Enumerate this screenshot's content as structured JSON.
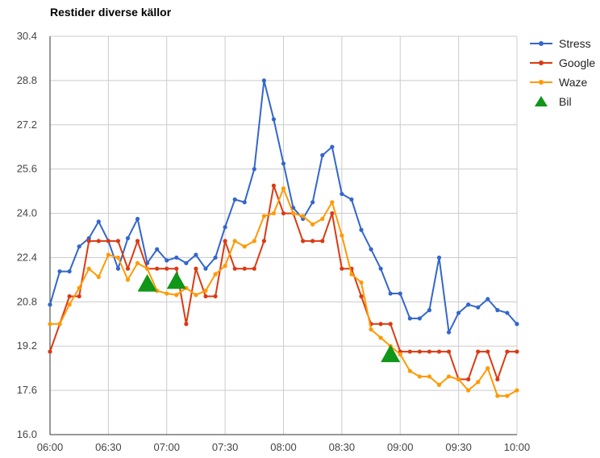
{
  "chart_data": {
    "type": "line",
    "title": "Restider diverse källor",
    "xlabel": "",
    "ylabel": "",
    "ylim": [
      16.0,
      30.4
    ],
    "y_ticks": [
      "16.0",
      "17.6",
      "19.2",
      "20.8",
      "22.4",
      "24.0",
      "25.6",
      "27.2",
      "28.8",
      "30.4"
    ],
    "x_range": [
      "06:00",
      "10:00"
    ],
    "x_ticks": [
      "06:00",
      "06:30",
      "07:00",
      "07:30",
      "08:00",
      "08:30",
      "09:00",
      "09:30",
      "10:00"
    ],
    "grid": true,
    "legend_position": "right",
    "series": [
      {
        "name": "Stress",
        "color": "#3366cc",
        "marker": "circle",
        "x": [
          "06:00",
          "06:05",
          "06:10",
          "06:15",
          "06:20",
          "06:25",
          "06:30",
          "06:35",
          "06:40",
          "06:45",
          "06:50",
          "06:55",
          "07:00",
          "07:05",
          "07:10",
          "07:15",
          "07:20",
          "07:25",
          "07:30",
          "07:35",
          "07:40",
          "07:45",
          "07:50",
          "07:55",
          "08:00",
          "08:05",
          "08:10",
          "08:15",
          "08:20",
          "08:25",
          "08:30",
          "08:35",
          "08:40",
          "08:45",
          "08:50",
          "08:55",
          "09:00",
          "09:05",
          "09:10",
          "09:15",
          "09:20",
          "09:25",
          "09:30",
          "09:35",
          "09:40",
          "09:45",
          "09:50",
          "09:55",
          "10:00"
        ],
        "values": [
          20.7,
          21.9,
          21.9,
          22.8,
          23.1,
          23.7,
          23.0,
          22.0,
          23.1,
          23.8,
          22.2,
          22.7,
          22.3,
          22.4,
          22.2,
          22.5,
          22.0,
          22.4,
          23.5,
          24.5,
          24.4,
          25.6,
          28.8,
          27.4,
          25.8,
          24.2,
          23.8,
          24.4,
          26.1,
          26.4,
          24.7,
          24.5,
          23.4,
          22.7,
          22.0,
          21.1,
          21.1,
          20.2,
          20.2,
          20.5,
          22.4,
          19.7,
          20.4,
          20.7,
          20.6,
          20.9,
          20.5,
          20.4,
          20.0
        ]
      },
      {
        "name": "Google",
        "color": "#dc3912",
        "marker": "circle",
        "x": [
          "06:00",
          "06:05",
          "06:10",
          "06:15",
          "06:20",
          "06:25",
          "06:30",
          "06:35",
          "06:40",
          "06:45",
          "06:50",
          "06:55",
          "07:00",
          "07:05",
          "07:10",
          "07:15",
          "07:20",
          "07:25",
          "07:30",
          "07:35",
          "07:40",
          "07:45",
          "07:50",
          "07:55",
          "08:00",
          "08:05",
          "08:10",
          "08:15",
          "08:20",
          "08:25",
          "08:30",
          "08:35",
          "08:40",
          "08:45",
          "08:50",
          "08:55",
          "09:00",
          "09:05",
          "09:10",
          "09:15",
          "09:20",
          "09:25",
          "09:30",
          "09:35",
          "09:40",
          "09:45",
          "09:50",
          "09:55",
          "10:00"
        ],
        "values": [
          19.0,
          20.0,
          21.0,
          21.0,
          23.0,
          23.0,
          23.0,
          23.0,
          22.0,
          23.0,
          22.0,
          22.0,
          22.0,
          22.0,
          20.0,
          22.0,
          21.0,
          21.0,
          23.0,
          22.0,
          22.0,
          22.0,
          23.0,
          25.0,
          24.0,
          24.0,
          23.0,
          23.0,
          23.0,
          24.0,
          22.0,
          22.0,
          21.0,
          20.0,
          20.0,
          20.0,
          19.0,
          19.0,
          19.0,
          19.0,
          19.0,
          19.0,
          18.0,
          18.0,
          19.0,
          19.0,
          18.0,
          19.0,
          19.0
        ]
      },
      {
        "name": "Waze",
        "color": "#ff9900",
        "marker": "circle",
        "x": [
          "06:00",
          "06:05",
          "06:10",
          "06:15",
          "06:20",
          "06:25",
          "06:30",
          "06:35",
          "06:40",
          "06:45",
          "06:50",
          "06:55",
          "07:00",
          "07:05",
          "07:10",
          "07:15",
          "07:20",
          "07:25",
          "07:30",
          "07:35",
          "07:40",
          "07:45",
          "07:50",
          "07:55",
          "08:00",
          "08:05",
          "08:10",
          "08:15",
          "08:20",
          "08:25",
          "08:30",
          "08:35",
          "08:40",
          "08:45",
          "08:50",
          "08:55",
          "09:00",
          "09:05",
          "09:10",
          "09:15",
          "09:20",
          "09:25",
          "09:30",
          "09:35",
          "09:40",
          "09:45",
          "09:50",
          "09:55",
          "10:00"
        ],
        "values": [
          20.0,
          20.0,
          20.7,
          21.3,
          22.0,
          21.7,
          22.5,
          22.4,
          21.6,
          22.2,
          22.0,
          21.2,
          21.1,
          21.05,
          21.3,
          21.05,
          21.2,
          21.8,
          22.1,
          23.0,
          22.8,
          23.0,
          23.9,
          24.0,
          24.9,
          24.0,
          23.9,
          23.6,
          23.8,
          24.4,
          23.2,
          21.8,
          21.5,
          19.8,
          19.5,
          19.2,
          18.9,
          18.3,
          18.1,
          18.1,
          17.8,
          18.1,
          18.0,
          17.6,
          17.9,
          18.4,
          17.4,
          17.4,
          17.6
        ]
      },
      {
        "name": "Bil",
        "color": "#109618",
        "marker": "triangle",
        "line": false,
        "x": [
          "06:50",
          "07:05",
          "08:55"
        ],
        "values": [
          21.45,
          21.55,
          18.9
        ]
      }
    ]
  }
}
